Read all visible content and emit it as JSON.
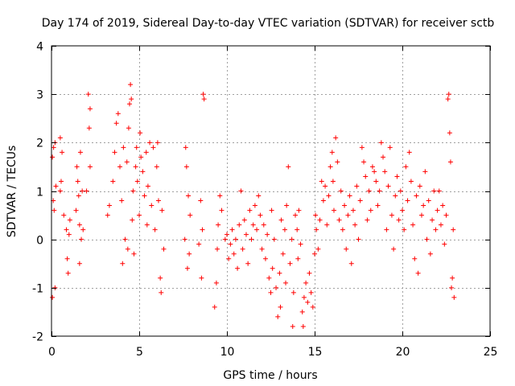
{
  "chart_data": {
    "type": "scatter",
    "title": "Day 174 of 2019, Sidereal Day-to-day VTEC variation (SDTVAR) for receiver sctb",
    "xlabel": "GPS time / hours",
    "ylabel": "SDTVAR / TECUs",
    "xlim": [
      0,
      25
    ],
    "ylim": [
      -2,
      4
    ],
    "xticks": [
      0,
      5,
      10,
      15,
      20,
      25
    ],
    "xtick_labels": [
      "0",
      "5",
      "10",
      "15",
      "20",
      "25"
    ],
    "yticks": [
      -2,
      -1,
      0,
      1,
      2,
      3,
      4
    ],
    "ytick_labels": [
      "-2",
      "-1",
      "0",
      "1",
      "2",
      "3",
      "4"
    ],
    "grid": true,
    "marker": "+",
    "marker_color": "#ff0000",
    "series": [
      {
        "name": "SDTVAR",
        "points": [
          [
            0.05,
            1.7
          ],
          [
            0.05,
            -1.2
          ],
          [
            0.1,
            0.8
          ],
          [
            0.12,
            1.9
          ],
          [
            0.15,
            0.6
          ],
          [
            0.2,
            2.0
          ],
          [
            0.2,
            -1.0
          ],
          [
            0.25,
            1.1
          ],
          [
            0.5,
            2.1
          ],
          [
            0.5,
            1.0
          ],
          [
            0.55,
            1.2
          ],
          [
            0.6,
            1.8
          ],
          [
            0.7,
            0.5
          ],
          [
            0.85,
            0.2
          ],
          [
            0.9,
            -0.4
          ],
          [
            0.95,
            -0.7
          ],
          [
            1.0,
            0.1
          ],
          [
            1.05,
            0.4
          ],
          [
            1.4,
            0.6
          ],
          [
            1.45,
            1.5
          ],
          [
            1.5,
            1.2
          ],
          [
            1.55,
            0.9
          ],
          [
            1.6,
            0.3
          ],
          [
            1.6,
            -0.5
          ],
          [
            1.65,
            1.8
          ],
          [
            1.7,
            0.0
          ],
          [
            1.75,
            1.0
          ],
          [
            1.8,
            0.2
          ],
          [
            2.0,
            1.0
          ],
          [
            2.1,
            3.0
          ],
          [
            2.15,
            2.3
          ],
          [
            2.2,
            2.7
          ],
          [
            2.2,
            1.5
          ],
          [
            3.2,
            0.5
          ],
          [
            3.3,
            0.7
          ],
          [
            3.5,
            1.2
          ],
          [
            3.6,
            1.8
          ],
          [
            3.7,
            2.4
          ],
          [
            3.8,
            2.6
          ],
          [
            3.9,
            1.5
          ],
          [
            4.0,
            0.8
          ],
          [
            4.05,
            -0.5
          ],
          [
            4.1,
            1.9
          ],
          [
            4.2,
            0.0
          ],
          [
            4.3,
            1.6
          ],
          [
            4.35,
            -0.2
          ],
          [
            4.4,
            2.3
          ],
          [
            4.45,
            2.8
          ],
          [
            4.5,
            3.2
          ],
          [
            4.55,
            2.9
          ],
          [
            4.6,
            0.4
          ],
          [
            4.65,
            1.0
          ],
          [
            4.7,
            -0.3
          ],
          [
            4.8,
            1.5
          ],
          [
            4.85,
            1.9
          ],
          [
            4.9,
            1.2
          ],
          [
            5.0,
            0.5
          ],
          [
            5.05,
            2.2
          ],
          [
            5.1,
            1.7
          ],
          [
            5.2,
            1.4
          ],
          [
            5.3,
            0.9
          ],
          [
            5.4,
            1.8
          ],
          [
            5.45,
            0.3
          ],
          [
            5.5,
            1.1
          ],
          [
            5.6,
            2.0
          ],
          [
            5.7,
            0.7
          ],
          [
            5.8,
            1.9
          ],
          [
            5.9,
            0.2
          ],
          [
            6.0,
            1.5
          ],
          [
            6.05,
            2.0
          ],
          [
            6.1,
            0.8
          ],
          [
            6.2,
            -0.8
          ],
          [
            6.25,
            -1.1
          ],
          [
            6.3,
            0.6
          ],
          [
            6.4,
            -0.2
          ],
          [
            7.6,
            0.0
          ],
          [
            7.65,
            1.9
          ],
          [
            7.7,
            1.5
          ],
          [
            7.75,
            -0.6
          ],
          [
            7.8,
            0.9
          ],
          [
            7.85,
            -0.3
          ],
          [
            7.9,
            0.5
          ],
          [
            8.4,
            -0.1
          ],
          [
            8.5,
            0.8
          ],
          [
            8.55,
            -0.8
          ],
          [
            8.6,
            0.2
          ],
          [
            8.65,
            3.0
          ],
          [
            8.7,
            2.9
          ],
          [
            9.3,
            -1.4
          ],
          [
            9.4,
            -0.9
          ],
          [
            9.45,
            -0.2
          ],
          [
            9.5,
            0.3
          ],
          [
            9.6,
            0.9
          ],
          [
            9.7,
            0.6
          ],
          [
            9.9,
            0.0
          ],
          [
            10.0,
            0.1
          ],
          [
            10.1,
            -0.4
          ],
          [
            10.2,
            -0.1
          ],
          [
            10.3,
            0.2
          ],
          [
            10.4,
            -0.3
          ],
          [
            10.5,
            0.0
          ],
          [
            10.6,
            -0.6
          ],
          [
            10.7,
            0.3
          ],
          [
            10.8,
            1.0
          ],
          [
            10.9,
            -0.2
          ],
          [
            11.0,
            0.4
          ],
          [
            11.1,
            0.1
          ],
          [
            11.2,
            -0.5
          ],
          [
            11.3,
            0.6
          ],
          [
            11.4,
            0.0
          ],
          [
            11.5,
            0.3
          ],
          [
            11.6,
            0.7
          ],
          [
            11.7,
            0.2
          ],
          [
            11.8,
            0.9
          ],
          [
            11.9,
            0.5
          ],
          [
            12.0,
            -0.2
          ],
          [
            12.1,
            0.3
          ],
          [
            12.2,
            -0.4
          ],
          [
            12.3,
            0.1
          ],
          [
            12.4,
            -0.8
          ],
          [
            12.5,
            -1.1
          ],
          [
            12.55,
            0.6
          ],
          [
            12.6,
            -0.6
          ],
          [
            12.7,
            0.0
          ],
          [
            12.8,
            -1.0
          ],
          [
            12.9,
            -1.6
          ],
          [
            13.0,
            -0.7
          ],
          [
            13.05,
            -1.4
          ],
          [
            13.1,
            0.4
          ],
          [
            13.2,
            -0.3
          ],
          [
            13.3,
            0.2
          ],
          [
            13.35,
            -0.9
          ],
          [
            13.4,
            0.7
          ],
          [
            13.5,
            1.5
          ],
          [
            13.6,
            -0.5
          ],
          [
            13.7,
            0.0
          ],
          [
            13.75,
            -1.8
          ],
          [
            13.8,
            -1.1
          ],
          [
            13.9,
            0.5
          ],
          [
            14.0,
            0.2
          ],
          [
            14.05,
            -0.4
          ],
          [
            14.1,
            0.6
          ],
          [
            14.2,
            -0.1
          ],
          [
            14.3,
            -1.5
          ],
          [
            14.35,
            -1.8
          ],
          [
            14.4,
            -1.2
          ],
          [
            14.5,
            -0.9
          ],
          [
            14.6,
            -1.3
          ],
          [
            14.7,
            -0.7
          ],
          [
            14.8,
            -1.1
          ],
          [
            14.9,
            -1.4
          ],
          [
            15.0,
            -0.3
          ],
          [
            15.05,
            0.5
          ],
          [
            15.1,
            0.2
          ],
          [
            15.2,
            -0.2
          ],
          [
            15.3,
            0.4
          ],
          [
            15.4,
            1.2
          ],
          [
            15.5,
            0.8
          ],
          [
            15.6,
            1.1
          ],
          [
            15.7,
            0.3
          ],
          [
            15.8,
            0.9
          ],
          [
            15.9,
            1.5
          ],
          [
            16.0,
            1.8
          ],
          [
            16.05,
            1.2
          ],
          [
            16.1,
            0.6
          ],
          [
            16.2,
            2.1
          ],
          [
            16.3,
            1.6
          ],
          [
            16.4,
            0.4
          ],
          [
            16.5,
            1.0
          ],
          [
            16.6,
            0.2
          ],
          [
            16.7,
            0.7
          ],
          [
            16.8,
            -0.2
          ],
          [
            16.9,
            0.5
          ],
          [
            17.0,
            0.9
          ],
          [
            17.1,
            -0.5
          ],
          [
            17.2,
            0.6
          ],
          [
            17.3,
            0.3
          ],
          [
            17.4,
            1.1
          ],
          [
            17.5,
            0.0
          ],
          [
            17.6,
            0.8
          ],
          [
            17.7,
            1.9
          ],
          [
            17.8,
            1.6
          ],
          [
            17.9,
            1.3
          ],
          [
            18.0,
            0.4
          ],
          [
            18.1,
            1.0
          ],
          [
            18.2,
            0.6
          ],
          [
            18.3,
            1.5
          ],
          [
            18.4,
            1.4
          ],
          [
            18.5,
            1.2
          ],
          [
            18.6,
            0.7
          ],
          [
            18.7,
            1.0
          ],
          [
            18.8,
            2.0
          ],
          [
            18.9,
            1.7
          ],
          [
            19.0,
            1.4
          ],
          [
            19.1,
            0.2
          ],
          [
            19.2,
            1.1
          ],
          [
            19.3,
            1.9
          ],
          [
            19.4,
            0.5
          ],
          [
            19.5,
            -0.2
          ],
          [
            19.6,
            0.9
          ],
          [
            19.7,
            1.3
          ],
          [
            19.8,
            0.4
          ],
          [
            19.9,
            1.0
          ],
          [
            20.0,
            0.6
          ],
          [
            20.1,
            0.2
          ],
          [
            20.2,
            1.5
          ],
          [
            20.3,
            0.8
          ],
          [
            20.4,
            1.8
          ],
          [
            20.5,
            1.2
          ],
          [
            20.6,
            0.3
          ],
          [
            20.7,
            -0.4
          ],
          [
            20.8,
            0.9
          ],
          [
            20.9,
            -0.7
          ],
          [
            21.0,
            1.1
          ],
          [
            21.1,
            0.5
          ],
          [
            21.2,
            0.7
          ],
          [
            21.3,
            1.4
          ],
          [
            21.4,
            0.0
          ],
          [
            21.5,
            0.8
          ],
          [
            21.6,
            -0.3
          ],
          [
            21.7,
            0.4
          ],
          [
            21.8,
            1.0
          ],
          [
            21.9,
            0.2
          ],
          [
            22.0,
            0.6
          ],
          [
            22.1,
            1.0
          ],
          [
            22.2,
            0.3
          ],
          [
            22.3,
            0.7
          ],
          [
            22.4,
            -0.1
          ],
          [
            22.5,
            0.5
          ],
          [
            22.6,
            2.9
          ],
          [
            22.65,
            3.0
          ],
          [
            22.7,
            2.2
          ],
          [
            22.75,
            1.6
          ],
          [
            22.8,
            -1.0
          ],
          [
            22.85,
            -0.8
          ],
          [
            22.9,
            0.2
          ],
          [
            22.95,
            -1.2
          ]
        ]
      }
    ]
  }
}
